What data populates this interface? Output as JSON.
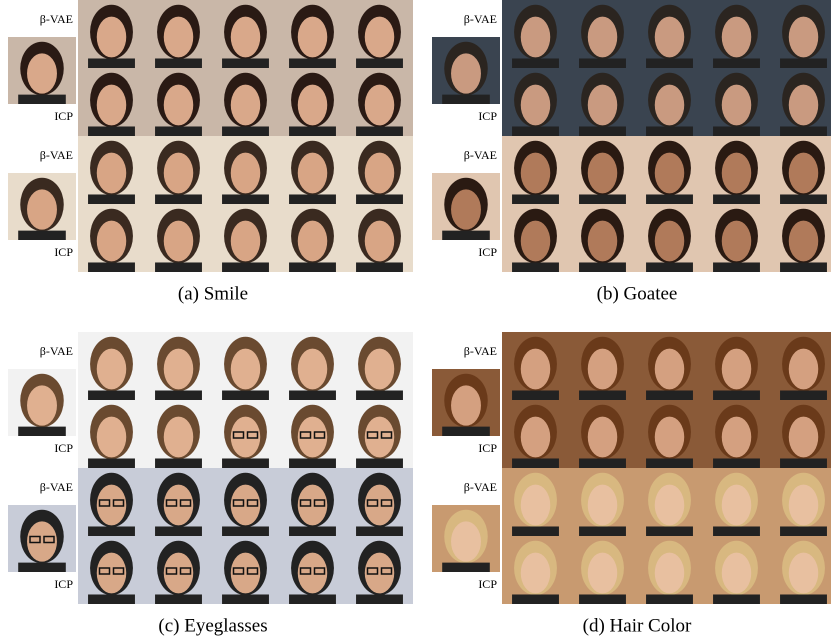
{
  "panels": [
    {
      "caption": "(a) Smile",
      "groups": [
        {
          "top_label": "β-VAE",
          "bottom_label": "ICP"
        },
        {
          "top_label": "β-VAE",
          "bottom_label": "ICP"
        }
      ]
    },
    {
      "caption": "(b) Goatee",
      "groups": [
        {
          "top_label": "β-VAE",
          "bottom_label": "ICP"
        },
        {
          "top_label": "β-VAE",
          "bottom_label": "ICP"
        }
      ]
    },
    {
      "caption": "(c) Eyeglasses",
      "groups": [
        {
          "top_label": "β-VAE",
          "bottom_label": "ICP"
        },
        {
          "top_label": "β-VAE",
          "bottom_label": "ICP"
        }
      ]
    },
    {
      "caption": "(d) Hair Color",
      "groups": [
        {
          "top_label": "β-VAE",
          "bottom_label": "ICP"
        },
        {
          "top_label": "β-VAE",
          "bottom_label": "ICP"
        }
      ]
    }
  ]
}
